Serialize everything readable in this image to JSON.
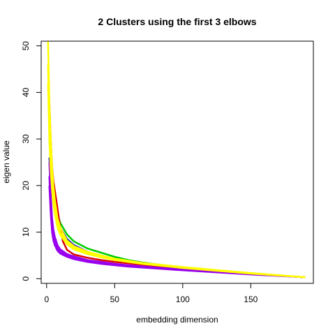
{
  "chart_data": {
    "type": "line",
    "title": "2 Clusters using the first 3 elbows",
    "xlabel": "embedding dimension",
    "ylabel": "eigen value",
    "xlim": [
      -4,
      196
    ],
    "ylim": [
      -1,
      51
    ],
    "xticks": [
      0,
      50,
      100,
      150
    ],
    "yticks": [
      0,
      10,
      20,
      30,
      40,
      50
    ],
    "grid": false,
    "legend": "none",
    "series": [
      {
        "color": "#00CC00",
        "x": [
          2,
          4,
          6,
          8,
          10,
          15,
          20,
          30,
          40,
          50,
          60,
          70,
          80,
          100,
          120,
          150,
          190
        ],
        "y": [
          30,
          21,
          17,
          14,
          12,
          9.5,
          8,
          6.5,
          5.6,
          4.7,
          4.0,
          3.5,
          3.1,
          2.4,
          1.8,
          1.1,
          0.3
        ]
      },
      {
        "color": "#0000CC",
        "x": [
          2,
          4,
          6,
          8,
          10,
          15,
          20,
          30,
          40,
          50,
          60,
          70,
          80,
          100,
          120,
          150,
          190
        ],
        "y": [
          26,
          19,
          15,
          12.5,
          11,
          8.5,
          7.2,
          5.8,
          4.9,
          4.2,
          3.8,
          3.4,
          3.1,
          2.4,
          1.8,
          1.1,
          0.3
        ]
      },
      {
        "color": "#DD0000",
        "x": [
          2,
          3,
          4,
          5,
          6,
          8,
          10,
          12,
          15,
          20,
          30,
          40,
          50,
          70,
          100,
          150,
          190
        ],
        "y": [
          38,
          30,
          24,
          21,
          19,
          15,
          11,
          8,
          6.2,
          5.2,
          4.5,
          4.0,
          3.6,
          3.0,
          2.3,
          1.1,
          0.3
        ]
      },
      {
        "color": "#9900EE",
        "x": [
          2,
          3,
          4,
          5,
          6,
          8,
          10,
          15,
          20,
          30,
          40,
          50,
          60,
          80,
          100,
          150,
          190
        ],
        "y": [
          22,
          15,
          11,
          9,
          7.8,
          6.5,
          5.8,
          5.0,
          4.5,
          3.8,
          3.4,
          3.1,
          2.8,
          2.3,
          1.9,
          1.0,
          0.3
        ]
      },
      {
        "color": "#9900EE",
        "x": [
          2,
          3,
          4,
          5,
          6,
          8,
          10,
          15,
          20,
          30,
          40,
          50,
          60,
          80,
          100,
          150,
          190
        ],
        "y": [
          25,
          18,
          13,
          10.5,
          9,
          7.2,
          6.3,
          5.3,
          4.8,
          4.0,
          3.6,
          3.2,
          2.9,
          2.4,
          2.0,
          1.0,
          0.3
        ]
      },
      {
        "color": "#9900EE",
        "x": [
          2,
          3,
          4,
          5,
          6,
          8,
          10,
          15,
          20,
          30,
          40,
          50,
          60,
          80,
          100,
          150,
          190
        ],
        "y": [
          20,
          14,
          10,
          8.2,
          7.2,
          6.0,
          5.4,
          4.7,
          4.2,
          3.6,
          3.2,
          2.9,
          2.6,
          2.2,
          1.8,
          0.9,
          0.3
        ]
      },
      {
        "color": "#FFFF00",
        "x": [
          1,
          2,
          3,
          4,
          5,
          6,
          8,
          10,
          15,
          20,
          30,
          40,
          50,
          70,
          100,
          150,
          190
        ],
        "y": [
          51,
          38,
          30,
          24,
          20,
          17,
          13,
          11,
          8.2,
          7.0,
          5.8,
          5.0,
          4.3,
          3.4,
          2.5,
          1.2,
          0.3
        ]
      },
      {
        "color": "#FFFF00",
        "x": [
          1,
          2,
          3,
          4,
          5,
          6,
          8,
          10,
          15,
          20,
          30,
          40,
          50,
          70,
          100,
          150,
          190
        ],
        "y": [
          46,
          33,
          26,
          21,
          18,
          15,
          12,
          10,
          7.8,
          6.6,
          5.5,
          4.8,
          4.1,
          3.3,
          2.4,
          1.2,
          0.3
        ]
      },
      {
        "color": "#FFFF00",
        "x": [
          1,
          2,
          3,
          4,
          5,
          6,
          8,
          10,
          15,
          20,
          30,
          40,
          50,
          70,
          100,
          150,
          190
        ],
        "y": [
          42,
          30,
          23,
          19,
          16,
          14,
          11,
          9.4,
          7.4,
          6.3,
          5.3,
          4.6,
          4.0,
          3.2,
          2.3,
          1.1,
          0.3
        ]
      }
    ]
  }
}
